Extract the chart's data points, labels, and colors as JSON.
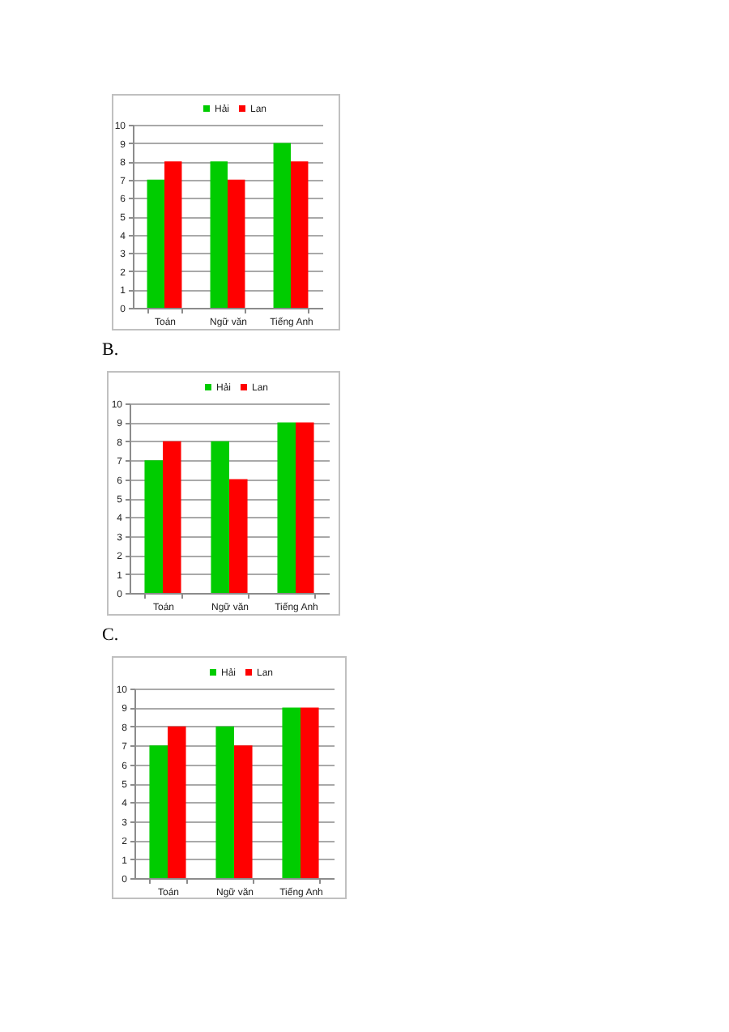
{
  "chart_data": [
    {
      "type": "bar",
      "categories": [
        "Toán",
        "Ngữ văn",
        "Tiếng Anh"
      ],
      "series": [
        {
          "name": "Hải",
          "color": "#00cc00",
          "values": [
            7,
            8,
            9
          ]
        },
        {
          "name": "Lan",
          "color": "#ff0000",
          "values": [
            8,
            7,
            8
          ]
        }
      ],
      "ylim": [
        0,
        10
      ],
      "yticks": [
        0,
        1,
        2,
        3,
        4,
        5,
        6,
        7,
        8,
        9,
        10
      ],
      "grid": "y",
      "legend": "top"
    },
    {
      "type": "bar",
      "title": "B.",
      "categories": [
        "Toán",
        "Ngữ văn",
        "Tiếng Anh"
      ],
      "series": [
        {
          "name": "Hải",
          "color": "#00cc00",
          "values": [
            7,
            8,
            9
          ]
        },
        {
          "name": "Lan",
          "color": "#ff0000",
          "values": [
            8,
            6,
            9
          ]
        }
      ],
      "ylim": [
        0,
        10
      ],
      "yticks": [
        0,
        1,
        2,
        3,
        4,
        5,
        6,
        7,
        8,
        9,
        10
      ],
      "grid": "y",
      "legend": "top"
    },
    {
      "type": "bar",
      "title": "C.",
      "categories": [
        "Toán",
        "Ngữ văn",
        "Tiếng Anh"
      ],
      "series": [
        {
          "name": "Hải",
          "color": "#00cc00",
          "values": [
            7,
            8,
            9
          ]
        },
        {
          "name": "Lan",
          "color": "#ff0000",
          "values": [
            8,
            7,
            9
          ]
        }
      ],
      "ylim": [
        0,
        10
      ],
      "yticks": [
        0,
        1,
        2,
        3,
        4,
        5,
        6,
        7,
        8,
        9,
        10
      ],
      "grid": "y",
      "legend": "top"
    }
  ]
}
